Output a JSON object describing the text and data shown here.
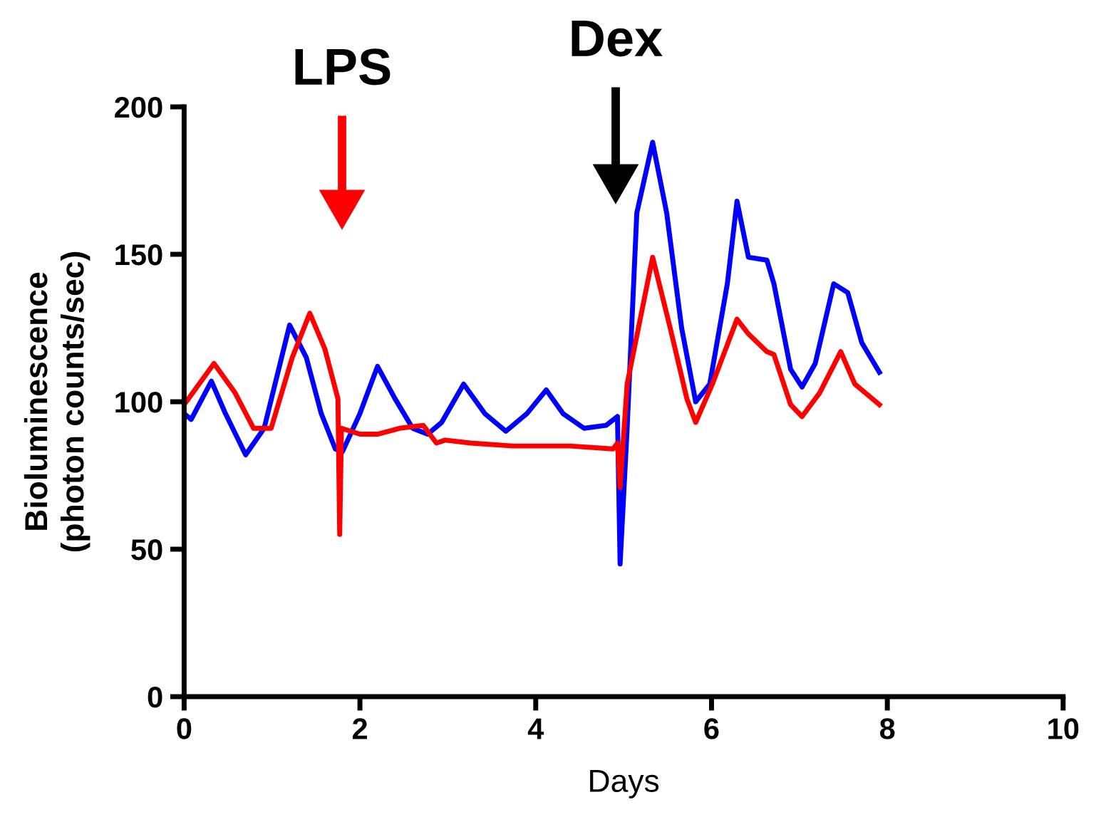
{
  "chart_data": {
    "type": "line",
    "xlabel": "Days",
    "ylabel": "Bioluminescence\n(photon counts/sec)",
    "xlim": [
      0,
      10
    ],
    "ylim": [
      0,
      200
    ],
    "xticks": [
      0,
      2,
      4,
      6,
      8,
      10
    ],
    "yticks": [
      0,
      50,
      100,
      150,
      200
    ],
    "grid": false,
    "marker": "none",
    "line_style": "solid",
    "annotations": [
      "LPS",
      "Dex"
    ],
    "series": [
      {
        "color": "#0000ff",
        "x": [
          0,
          0.08,
          0.31,
          0.47,
          0.7,
          0.91,
          1.2,
          1.39,
          1.56,
          1.72,
          1.8,
          2.0,
          2.2,
          2.4,
          2.6,
          2.77,
          2.93,
          3.18,
          3.42,
          3.66,
          3.9,
          4.12,
          4.31,
          4.55,
          4.8,
          4.93,
          4.96,
          5.04,
          5.15,
          5.33,
          5.49,
          5.66,
          5.82,
          5.98,
          6.18,
          6.29,
          6.42,
          6.63,
          6.71,
          6.9,
          7.03,
          7.18,
          7.39,
          7.55,
          7.71,
          7.91
        ],
        "values": [
          96,
          94,
          107,
          96,
          82,
          91,
          126,
          115,
          96,
          84,
          83,
          96,
          112,
          101,
          91,
          89,
          93,
          106,
          96,
          90,
          96,
          104,
          96,
          91,
          92,
          95,
          45,
          91,
          164,
          188,
          164,
          125,
          100,
          106,
          140,
          168,
          149,
          148,
          140,
          111,
          105,
          113,
          140,
          137,
          120,
          110
        ]
      },
      {
        "color": "#ff0000",
        "x": [
          0,
          0.34,
          0.58,
          0.79,
          0.99,
          1.23,
          1.43,
          1.6,
          1.75,
          1.77,
          1.79,
          2.0,
          2.2,
          2.45,
          2.72,
          2.87,
          2.97,
          3.26,
          3.74,
          4.39,
          4.88,
          4.93,
          4.96,
          5.04,
          5.33,
          5.53,
          5.72,
          5.82,
          6.01,
          6.29,
          6.42,
          6.63,
          6.71,
          6.9,
          7.03,
          7.23,
          7.47,
          7.63,
          7.91
        ],
        "values": [
          99,
          113,
          103,
          91,
          91,
          115,
          130,
          118,
          101,
          55,
          91,
          89,
          89,
          91,
          92,
          86,
          87,
          86,
          85,
          85,
          84,
          86,
          71,
          106,
          149,
          125,
          101,
          93,
          106,
          128,
          123,
          117,
          116,
          99,
          95,
          103,
          117,
          106,
          99
        ]
      }
    ]
  }
}
